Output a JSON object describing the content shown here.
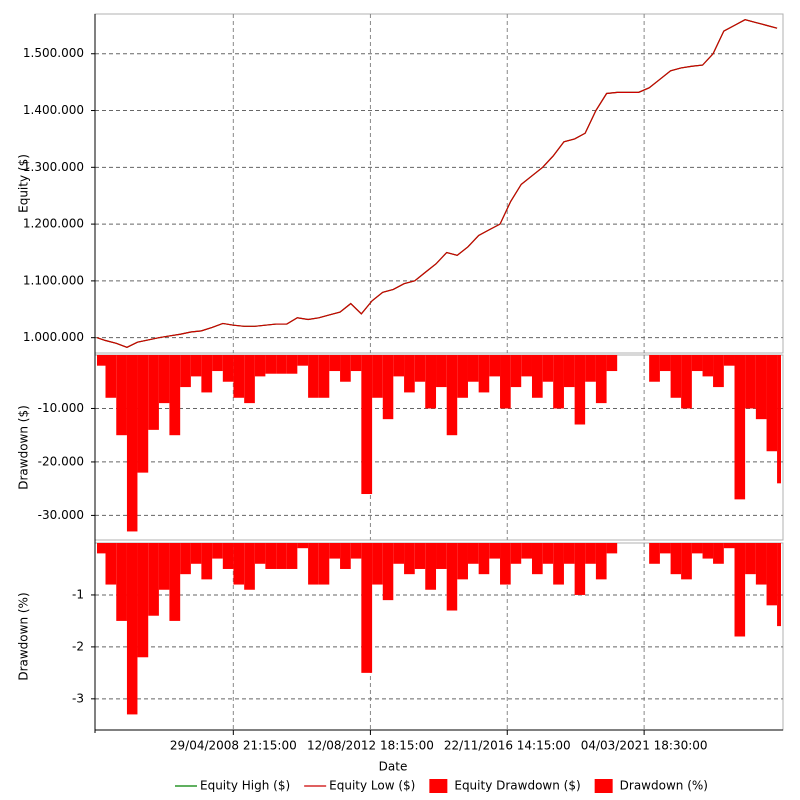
{
  "chart_data": {
    "type": "line",
    "xlabel": "Date",
    "grid": true,
    "legend": "bottom",
    "x": [
      "25/01/2004 00:00:00",
      "01/05/2004 00:00:00",
      "01/09/2004 00:00:00",
      "01/01/2005 00:00:00",
      "01/05/2005 00:00:00",
      "01/09/2005 00:00:00",
      "01/01/2006 00:00:00",
      "01/05/2006 00:00:00",
      "01/09/2006 00:00:00",
      "01/01/2007 00:00:00",
      "01/05/2007 00:00:00",
      "01/09/2007 00:00:00",
      "01/01/2008 00:00:00",
      "01/05/2008 00:00:00",
      "01/09/2008 00:00:00",
      "01/01/2009 00:00:00",
      "01/05/2009 00:00:00",
      "01/09/2009 00:00:00",
      "01/01/2010 00:00:00",
      "01/05/2010 00:00:00",
      "01/09/2010 00:00:00",
      "01/01/2011 00:00:00",
      "01/05/2011 00:00:00",
      "01/09/2011 00:00:00",
      "01/01/2012 00:00:00",
      "01/05/2012 00:00:00",
      "01/09/2012 00:00:00",
      "01/01/2013 00:00:00",
      "01/05/2013 00:00:00",
      "01/09/2013 00:00:00",
      "01/01/2014 00:00:00",
      "01/05/2014 00:00:00",
      "01/09/2014 00:00:00",
      "01/01/2015 00:00:00",
      "01/05/2015 00:00:00",
      "01/09/2015 00:00:00",
      "01/01/2016 00:00:00",
      "01/05/2016 00:00:00",
      "01/09/2016 00:00:00",
      "01/01/2017 00:00:00",
      "01/05/2017 00:00:00",
      "01/09/2017 00:00:00",
      "01/01/2018 00:00:00",
      "01/05/2018 00:00:00",
      "01/09/2018 00:00:00",
      "01/01/2019 00:00:00",
      "01/05/2019 00:00:00",
      "01/09/2019 00:00:00",
      "01/01/2020 00:00:00",
      "01/05/2020 00:00:00",
      "01/09/2020 00:00:00",
      "01/01/2021 00:00:00",
      "01/05/2021 00:00:00",
      "01/09/2021 00:00:00",
      "01/01/2022 00:00:00",
      "01/05/2022 00:00:00",
      "01/09/2022 00:00:00",
      "01/01/2023 00:00:00",
      "01/05/2023 00:00:00",
      "01/09/2023 00:00:00",
      "01/01/2024 00:00:00",
      "01/05/2024 00:00:00",
      "01/09/2024 00:00:00",
      "01/01/2025 00:00:00",
      "01/05/2025 00:00:00"
    ],
    "xlim": [
      "25/01/2004 00:00:00",
      "15/06/2025 00:00:00"
    ],
    "xticks": [
      "29/04/2008 21:15:00",
      "12/08/2012 18:15:00",
      "22/11/2016 14:15:00",
      "04/03/2021 18:30:00"
    ],
    "panels": [
      {
        "ylabel": "Equity ($)",
        "ylim": [
          973000,
          1570000
        ],
        "yticks": [
          {
            "value": 1000000,
            "label": "1.000.000"
          },
          {
            "value": 1100000,
            "label": "1.100.000"
          },
          {
            "value": 1200000,
            "label": "1.200.000"
          },
          {
            "value": 1300000,
            "label": "1.300.000"
          },
          {
            "value": 1400000,
            "label": "1.400.000"
          },
          {
            "value": 1500000,
            "label": "1.500.000"
          }
        ],
        "series": [
          {
            "name": "Equity High ($)",
            "type": "line",
            "color": "#008000",
            "values": [
              1000000,
              995000,
              990000,
              983000,
              992000,
              996000,
              1000000,
              1003000,
              1006000,
              1010000,
              1012000,
              1018000,
              1025000,
              1022000,
              1020000,
              1020000,
              1022000,
              1024000,
              1024000,
              1035000,
              1032000,
              1035000,
              1040000,
              1045000,
              1060000,
              1042000,
              1065000,
              1080000,
              1085000,
              1095000,
              1100000,
              1115000,
              1130000,
              1150000,
              1145000,
              1160000,
              1180000,
              1190000,
              1200000,
              1240000,
              1270000,
              1285000,
              1300000,
              1320000,
              1345000,
              1350000,
              1360000,
              1400000,
              1430000,
              1432000,
              1432000,
              1432000,
              1440000,
              1455000,
              1470000,
              1475000,
              1478000,
              1480000,
              1500000,
              1540000,
              1550000,
              1560000,
              1555000,
              1550000,
              1545000
            ]
          },
          {
            "name": "Equity Low ($)",
            "type": "line",
            "color": "#cc0000",
            "values": [
              1000000,
              995000,
              990000,
              983000,
              992000,
              996000,
              1000000,
              1003000,
              1006000,
              1010000,
              1012000,
              1018000,
              1025000,
              1022000,
              1020000,
              1020000,
              1022000,
              1024000,
              1024000,
              1035000,
              1032000,
              1035000,
              1040000,
              1045000,
              1060000,
              1042000,
              1065000,
              1080000,
              1085000,
              1095000,
              1100000,
              1115000,
              1130000,
              1150000,
              1145000,
              1160000,
              1180000,
              1190000,
              1200000,
              1240000,
              1270000,
              1285000,
              1300000,
              1320000,
              1345000,
              1350000,
              1360000,
              1400000,
              1430000,
              1432000,
              1432000,
              1432000,
              1440000,
              1455000,
              1470000,
              1475000,
              1478000,
              1480000,
              1500000,
              1540000,
              1550000,
              1560000,
              1555000,
              1550000,
              1545000
            ]
          }
        ]
      },
      {
        "ylabel": "Drawdown ($)",
        "ylim": [
          -34600,
          0
        ],
        "yticks": [
          {
            "value": -10000,
            "label": "-10.000"
          },
          {
            "value": -20000,
            "label": "-20.000"
          },
          {
            "value": -30000,
            "label": "-30.000"
          }
        ],
        "series": [
          {
            "name": "Equity Drawdown ($)",
            "type": "area",
            "color": "#ff0000",
            "values": [
              -2000,
              -8000,
              -15000,
              -33000,
              -22000,
              -14000,
              -9000,
              -15000,
              -6000,
              -4000,
              -7000,
              -3000,
              -5000,
              -8000,
              -9000,
              -4000,
              -3500,
              -3500,
              -3500,
              -2000,
              -8000,
              -8000,
              -3000,
              -5000,
              -3000,
              -26000,
              -8000,
              -12000,
              -4000,
              -7000,
              -5000,
              -10000,
              -6000,
              -15000,
              -8000,
              -5000,
              -7000,
              -4000,
              -10000,
              -6000,
              -4000,
              -8000,
              -5000,
              -10000,
              -6000,
              -13000,
              -5000,
              -9000,
              -3000,
              0,
              0,
              0,
              -5000,
              -3000,
              -8000,
              -10000,
              -3000,
              -4000,
              -6000,
              -2000,
              -27000,
              -10000,
              -12000,
              -18000,
              -24000
            ]
          }
        ]
      },
      {
        "ylabel": "Drawdown (%)",
        "ylim": [
          -3.6,
          0
        ],
        "yticks": [
          -1,
          -2,
          -3
        ],
        "series": [
          {
            "name": "Drawdown (%)",
            "type": "area",
            "color": "#ff0000",
            "values": [
              -0.2,
              -0.8,
              -1.5,
              -3.3,
              -2.2,
              -1.4,
              -0.9,
              -1.5,
              -0.6,
              -0.4,
              -0.7,
              -0.3,
              -0.5,
              -0.8,
              -0.9,
              -0.4,
              -0.5,
              -0.5,
              -0.5,
              -0.1,
              -0.8,
              -0.8,
              -0.3,
              -0.5,
              -0.3,
              -2.5,
              -0.8,
              -1.1,
              -0.4,
              -0.6,
              -0.5,
              -0.9,
              -0.5,
              -1.3,
              -0.7,
              -0.4,
              -0.6,
              -0.3,
              -0.8,
              -0.4,
              -0.3,
              -0.6,
              -0.4,
              -0.8,
              -0.4,
              -1.0,
              -0.4,
              -0.7,
              -0.2,
              0,
              0,
              0,
              -0.4,
              -0.2,
              -0.6,
              -0.7,
              -0.2,
              -0.3,
              -0.4,
              -0.1,
              -1.8,
              -0.6,
              -0.8,
              -1.2,
              -1.6
            ]
          }
        ]
      }
    ]
  }
}
